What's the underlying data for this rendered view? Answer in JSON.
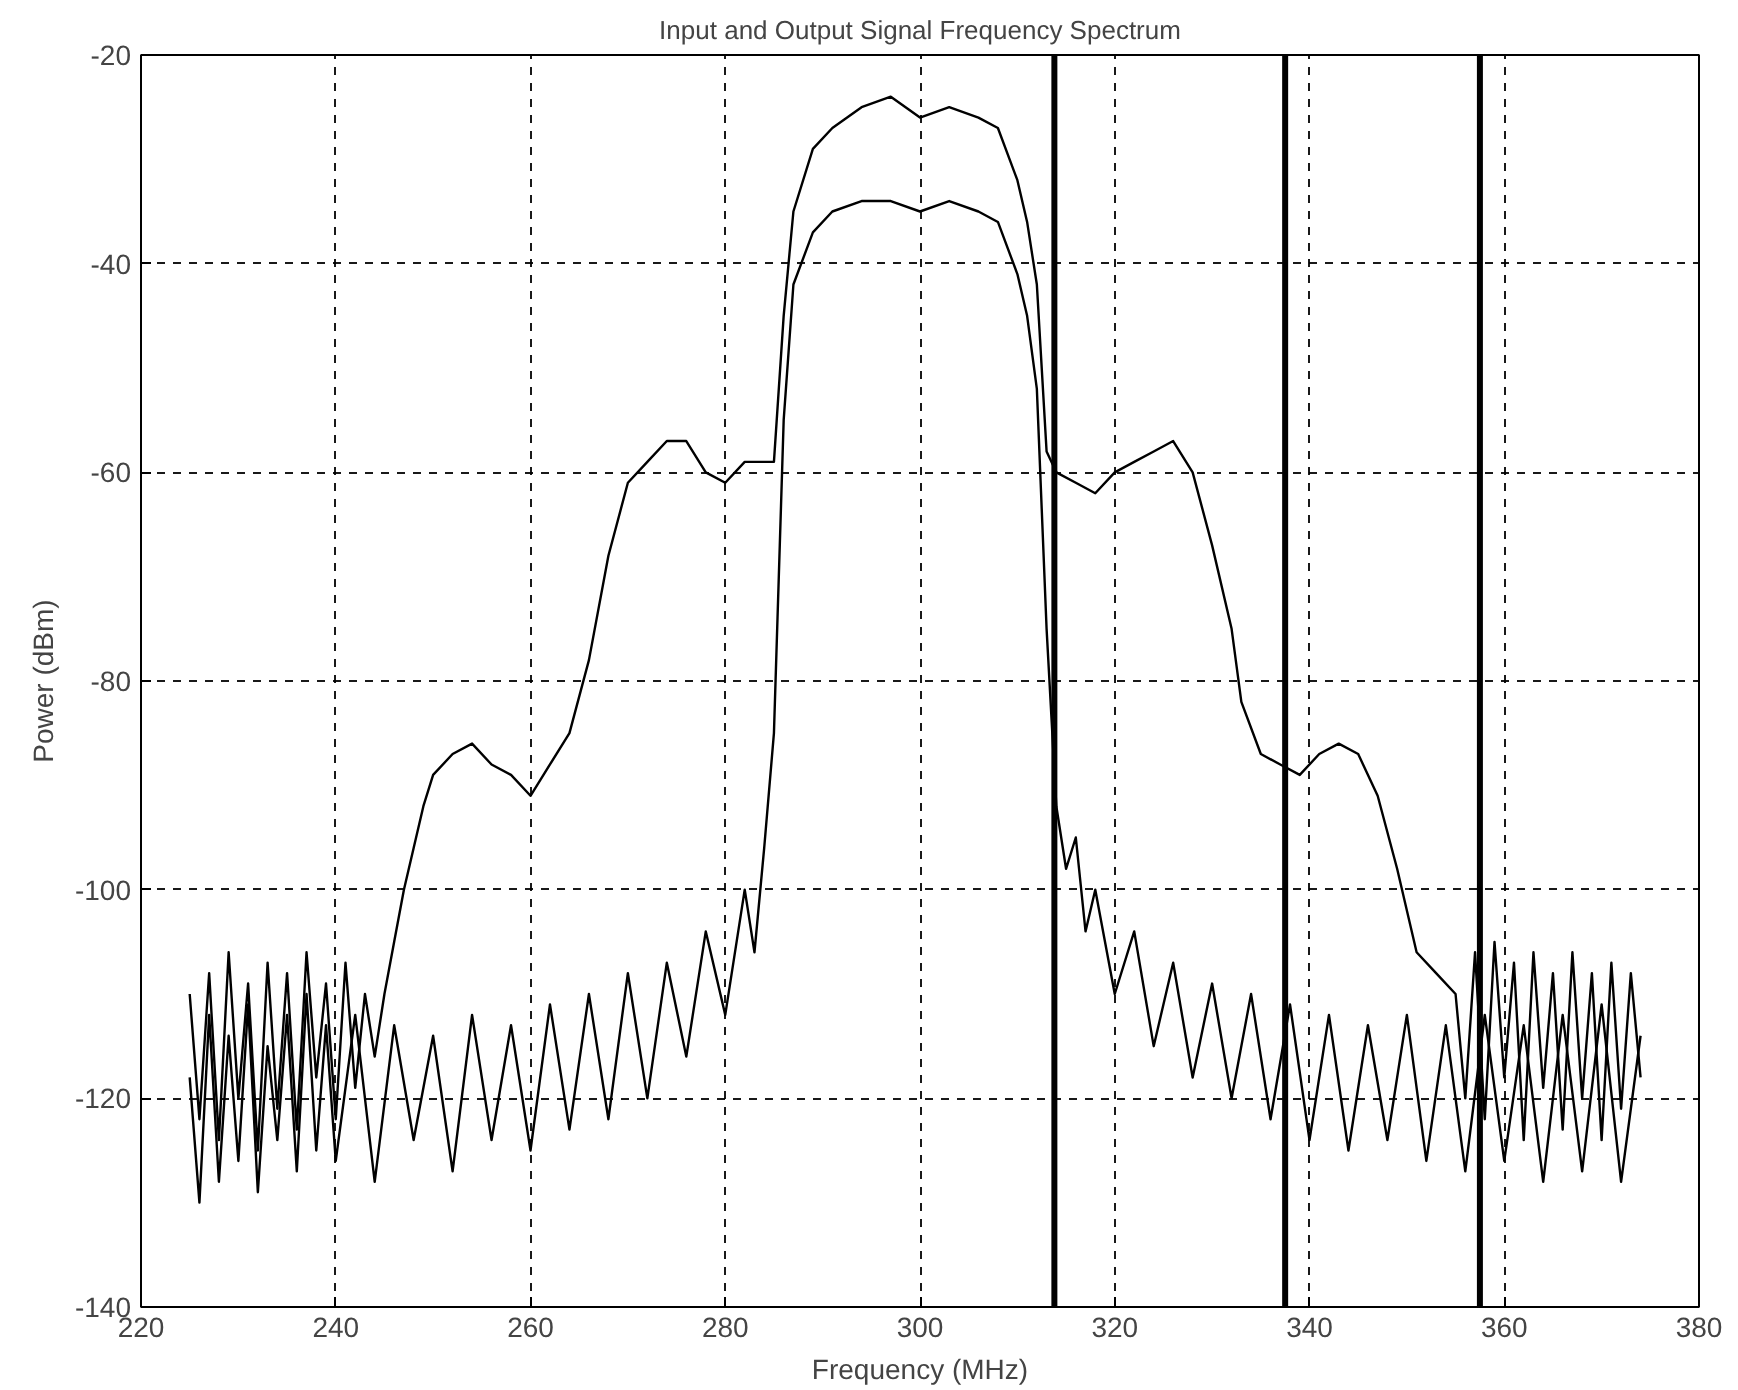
{
  "chart_data": {
    "type": "line",
    "title": "Input and Output Signal Frequency Spectrum",
    "xlabel": "Frequency (MHz)",
    "ylabel": "Power (dBm)",
    "xlim": [
      220,
      380
    ],
    "xticks": [
      220,
      240,
      260,
      280,
      300,
      320,
      340,
      360,
      380
    ],
    "ylim": [
      -140,
      -20
    ],
    "yticks": [
      -140,
      -120,
      -100,
      -80,
      -60,
      -40,
      -20
    ],
    "grid": true,
    "line_style": "solid",
    "series": [
      {
        "color": "#000000",
        "x": [
          225,
          226,
          227,
          228,
          229,
          230,
          231,
          232,
          233,
          234,
          235,
          236,
          237,
          238,
          239,
          240,
          241,
          242,
          243,
          244,
          245,
          246,
          247,
          248,
          249,
          250,
          252,
          254,
          256,
          258,
          260,
          262,
          264,
          266,
          268,
          270,
          272,
          274,
          276,
          278,
          280,
          282,
          285,
          286,
          287,
          289,
          291,
          294,
          297,
          300,
          303,
          306,
          308,
          310,
          311,
          312,
          313,
          314,
          316,
          318,
          320,
          322,
          324,
          326,
          328,
          330,
          332,
          333,
          335,
          337,
          339,
          341,
          343,
          345,
          347,
          349,
          351,
          353,
          355,
          356,
          357,
          358,
          359,
          360,
          361,
          362,
          363,
          364,
          365,
          366,
          367,
          368,
          369,
          370,
          371,
          372,
          373,
          374
        ],
        "values": [
          -110,
          -122,
          -108,
          -124,
          -106,
          -120,
          -109,
          -125,
          -107,
          -121,
          -108,
          -123,
          -106,
          -118,
          -109,
          -122,
          -107,
          -119,
          -110,
          -116,
          -110,
          -105,
          -100,
          -96,
          -92,
          -89,
          -87,
          -86,
          -88,
          -89,
          -91,
          -88,
          -85,
          -78,
          -68,
          -61,
          -59,
          -57,
          -57,
          -60,
          -61,
          -59,
          -59,
          -45,
          -35,
          -29,
          -27,
          -25,
          -24,
          -26,
          -25,
          -26,
          -27,
          -32,
          -36,
          -42,
          -58,
          -60,
          -61,
          -62,
          -60,
          -59,
          -58,
          -57,
          -60,
          -67,
          -75,
          -82,
          -87,
          -88,
          -89,
          -87,
          -86,
          -87,
          -91,
          -98,
          -106,
          -108,
          -110,
          -120,
          -106,
          -122,
          -105,
          -118,
          -107,
          -124,
          -106,
          -119,
          -108,
          -123,
          -106,
          -120,
          -108,
          -124,
          -107,
          -121,
          -108,
          -118
        ]
      },
      {
        "color": "#000000",
        "x": [
          225,
          226,
          227,
          228,
          229,
          230,
          231,
          232,
          233,
          234,
          235,
          236,
          237,
          238,
          239,
          240,
          242,
          244,
          246,
          248,
          250,
          252,
          254,
          256,
          258,
          260,
          262,
          264,
          266,
          268,
          270,
          272,
          274,
          276,
          278,
          280,
          282,
          283,
          284,
          285,
          286,
          287,
          289,
          291,
          294,
          297,
          300,
          303,
          306,
          308,
          310,
          311,
          312,
          313,
          314,
          315,
          316,
          317,
          318,
          320,
          322,
          324,
          326,
          328,
          330,
          332,
          334,
          336,
          338,
          340,
          342,
          344,
          346,
          348,
          350,
          352,
          354,
          356,
          358,
          360,
          362,
          364,
          366,
          368,
          370,
          372,
          374
        ],
        "values": [
          -118,
          -130,
          -112,
          -128,
          -114,
          -126,
          -111,
          -129,
          -115,
          -124,
          -112,
          -127,
          -110,
          -125,
          -113,
          -126,
          -112,
          -128,
          -113,
          -124,
          -114,
          -127,
          -112,
          -124,
          -113,
          -125,
          -111,
          -123,
          -110,
          -122,
          -108,
          -120,
          -107,
          -116,
          -104,
          -112,
          -100,
          -106,
          -96,
          -85,
          -55,
          -42,
          -37,
          -35,
          -34,
          -34,
          -35,
          -34,
          -35,
          -36,
          -41,
          -45,
          -52,
          -75,
          -92,
          -98,
          -95,
          -104,
          -100,
          -110,
          -104,
          -115,
          -107,
          -118,
          -109,
          -120,
          -110,
          -122,
          -111,
          -124,
          -112,
          -125,
          -113,
          -124,
          -112,
          -126,
          -113,
          -127,
          -112,
          -126,
          -113,
          -128,
          -112,
          -127,
          -111,
          -128,
          -114
        ]
      }
    ],
    "ref_lines": [
      {
        "axis": "x",
        "value": 313.8,
        "color": "#000000"
      },
      {
        "axis": "x",
        "value": 337.5,
        "color": "#000000"
      },
      {
        "axis": "x",
        "value": 357.5,
        "color": "#000000"
      }
    ]
  }
}
